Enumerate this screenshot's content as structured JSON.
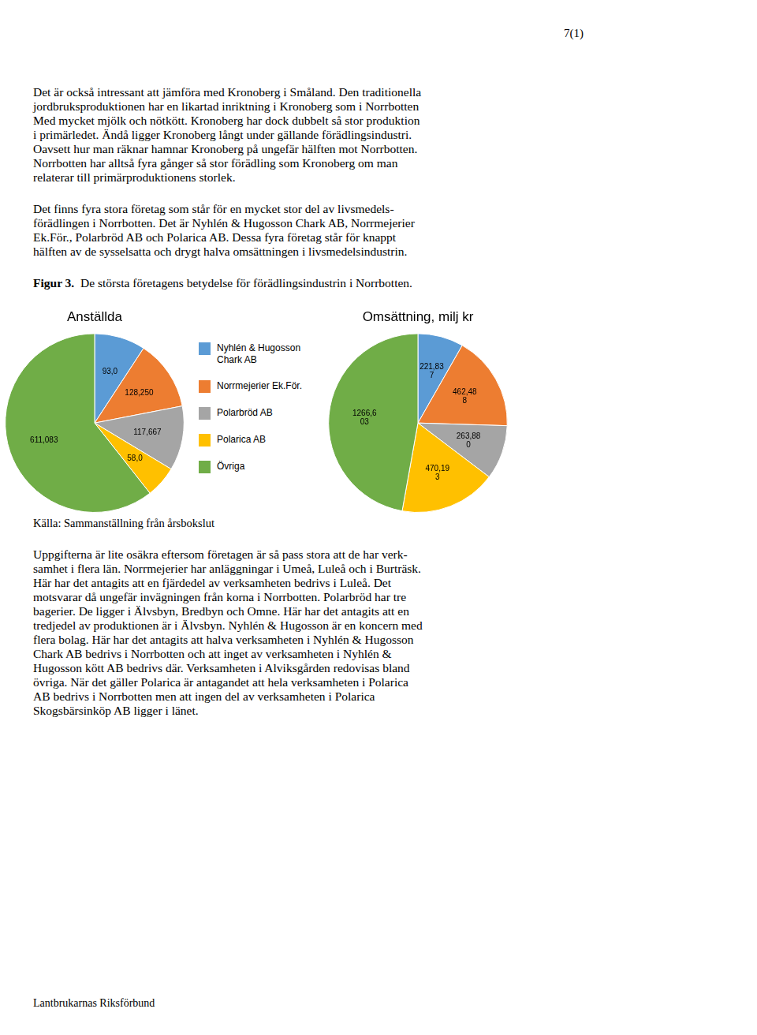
{
  "page_number": "7(1)",
  "paragraphs_before": [
    [
      "Det är också intressant att jämföra med Kronoberg i Småland. Den traditionella",
      "jordbruksproduktionen har en likartad inriktning i Kronoberg som i Norrbotten",
      "Med mycket mjölk och nötkött. Kronoberg har dock dubbelt så stor produktion",
      "i primärledet. Ändå ligger Kronoberg långt under gällande förädlingsindustri.",
      "Oavsett hur man räknar hamnar Kronoberg på ungefär hälften mot Norrbotten.",
      "Norrbotten har alltså fyra gånger så stor förädling som Kronoberg om man",
      "relaterar till primärproduktionens storlek."
    ],
    [
      "Det finns fyra stora företag som står för en mycket stor del av livsmedels-",
      "förädlingen i Norrbotten. Det är Nyhlén & Hugosson Chark AB, Norrmejerier",
      "Ek.För., Polarbröd AB och Polarica AB. Dessa fyra företag står för knappt",
      "hälften av de sysselsatta och drygt halva omsättningen i livsmedelsindustrin."
    ]
  ],
  "figure_label": "Figur 3.",
  "figure_title": "  De största företagens betydelse för förädlingsindustrin i Norrbotten.",
  "chart_data": [
    {
      "type": "pie",
      "title": "Anställda",
      "categories": [
        "Nyhlén & Hugosson\nChark AB",
        "Norrmejerier Ek.För.",
        "Polarbröd AB",
        "Polarica AB",
        "Övriga"
      ],
      "values": [
        93.0,
        128.25,
        117.667,
        58.0,
        611.083
      ],
      "value_labels": [
        "93,0",
        "128,250",
        "117,667",
        "58,0",
        "611,083"
      ],
      "colors": [
        "#5b9bd5",
        "#ed7d31",
        "#a5a5a5",
        "#ffc000",
        "#70ad47"
      ],
      "data_labels": true,
      "legend": "right"
    },
    {
      "type": "pie",
      "title": "Omsättning, milj kr",
      "categories": [
        "Nyhlén & Hugosson\nChark AB",
        "Norrmejerier Ek.För.",
        "Polarbröd AB",
        "Polarica AB",
        "Övriga"
      ],
      "values": [
        221.837,
        462.488,
        263.88,
        470.193,
        1266.603
      ],
      "value_labels": [
        "221,83\n7",
        "462,48\n8",
        "263,88\n0",
        "470,19\n3",
        "1266,6\n03"
      ],
      "colors": [
        "#5b9bd5",
        "#ed7d31",
        "#a5a5a5",
        "#ffc000",
        "#70ad47"
      ],
      "data_labels": true
    }
  ],
  "source": "Källa: Sammanställning från årsbokslut",
  "paragraphs_after": [
    [
      "Uppgifterna är lite osäkra eftersom företagen är så pass stora att de har verk-",
      "samhet i flera län. Norrmejerier har anläggningar i Umeå, Luleå och i Burträsk.",
      "Här har det antagits att en fjärdedel av verksamheten bedrivs i Luleå. Det",
      "motsvarar då ungefär invägningen från korna i Norrbotten. Polarbröd har tre",
      "bagerier. De ligger i Älvsbyn, Bredbyn och Omne. Här har det antagits att en",
      "tredjedel av produktionen är i Älvsbyn. Nyhlén & Hugosson är en koncern med",
      "flera bolag. Här har det antagits att halva verksamheten i Nyhlén & Hugosson",
      "Chark AB bedrivs i Norrbotten och att inget av verksamheten i Nyhlén &",
      "Hugosson kött AB bedrivs där. Verksamheten i Alviksgården redovisas bland",
      "övriga. När det gäller Polarica är antagandet att hela verksamheten i Polarica",
      "AB bedrivs i Norrbotten men att ingen del av verksamheten i Polarica",
      "Skogsbärsinköp AB ligger i länet."
    ]
  ],
  "footer": "Lantbrukarnas Riksförbund"
}
